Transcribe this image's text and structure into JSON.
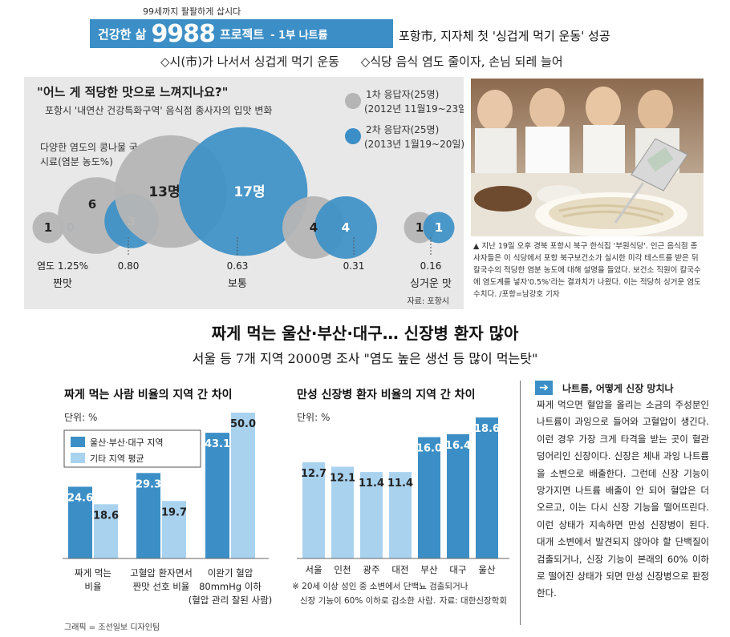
{
  "header": {
    "slogan": "99세까지 팔팔하게 삽시다",
    "banner_prefix": "건강한 삶",
    "banner_number": "9988",
    "banner_suffix": "프로젝트",
    "banner_part": "- 1부 나트륨",
    "headline": "포항市, 지자체 첫 '싱겁게 먹기 운동' 성공",
    "subheads": [
      "◇시(市)가 나서서 싱겁게 먹기 운동",
      "◇식당 음식 염도 줄이자, 손님 되레 늘어"
    ]
  },
  "photo_caption": "▲ 지난 19일 오후 경북 포항시 북구 한식집 '부원식당'. 인근 음식점 종사자들은 이 식당에서 포항 북구보건소가 실시한 미각 테스트를 받은 뒤 칼국수의 적당한 염분 농도에 대해 설명을 들었다. 보건소 직원이 칼국수에 염도계를 넣자'0.5%'라는 결과치가 나왔다. 이는 적당히 싱거운 염도 수치다. /포항=남강호 기자",
  "main": {
    "title": "짜게 먹는 울산·부산·대구… 신장병 환자 많아",
    "subtitle": "서울 등 7개 지역 2000명 조사 \"염도 높은 생선 등 많이 먹는탓\""
  },
  "sidebar": {
    "title": "나트륨, 어떻게 신장 망치나",
    "body": "짜게 먹으면 혈압을 올리는 소금의 주성분인 나트륨이 과잉으로 들어와 고혈압이 생긴다. 이런 경우 가장 크게 타격을 받는 곳이 혈관 덩어리인 신장이다. 신장은 체내 과잉 나트륨을 소변으로 배출한다. 그런데 신장 기능이 망가지면 나트륨 배출이 안 되어 혈압은 더 오르고, 이는 다시 신장 기능을 떨어뜨린다. 이런 상태가 지속하면 만성 신장병이 된다. 대개 소변에서 발견되지 않아야 할 단백질이 검출되거나, 신장 기능이 본래의 60% 이하로 떨어진 상태가 되면 만성 신장병으로 판정한다."
  },
  "credit": "그래픽 = 조선일보 디자인팀",
  "colors": {
    "accent": "#3c8fc6",
    "light": "#a9d2ef",
    "gray": "#b5b5b5",
    "panel": "#e8e8e8"
  },
  "chart_data": [
    {
      "type": "bubble",
      "title": "\"어느 게 적당한 맛으로 느껴지나요?\"",
      "subtitle": "포항시 '내연산 건강특화구역' 음식점 종사자의 입맛 변화",
      "ylabel": "다양한 염도의 콩나물 국 시료(염분 농도%)",
      "source": "자료: 포항시",
      "categories": [
        "0.80",
        "0.63",
        "0.31"
      ],
      "end_labels": {
        "left_value": "염도 1.25%",
        "left_word": "짠맛",
        "mid_word": "보통",
        "right_value": "0.16",
        "right_word": "싱거운 맛"
      },
      "series": [
        {
          "name": "1차 응답자(25명)",
          "period": "(2012년 11월19~23일)",
          "values": [
            1,
            6,
            13,
            4,
            1
          ],
          "labels": [
            "1",
            "6",
            "13명",
            "4",
            "1"
          ]
        },
        {
          "name": "2차 응답자(25명)",
          "period": "(2013년 1월19~20일)",
          "values": [
            0,
            3,
            17,
            4,
            1
          ],
          "labels": [
            "0",
            "3",
            "17명",
            "4",
            "1"
          ]
        }
      ]
    },
    {
      "type": "bar",
      "title": "짜게 먹는 사람 비율의 지역 간 차이",
      "unit": "단위: %",
      "categories": [
        "짜게 먹는\n비율",
        "고혈압 환자면서\n짠맛 선호 비율",
        "이완기 혈압\n80mmHg 이하\n(혈압 관리 잘된 사람)"
      ],
      "series": [
        {
          "name": "울산·부산·대구 지역",
          "values": [
            24.6,
            29.3,
            43.1
          ]
        },
        {
          "name": "기타 지역 평균",
          "values": [
            18.6,
            19.7,
            50.0
          ]
        }
      ],
      "ylim": [
        0,
        50
      ],
      "legend": "top-left"
    },
    {
      "type": "bar",
      "title": "만성 신장병 환자 비율의 지역 간 차이",
      "unit": "단위: %",
      "categories": [
        "서울",
        "인천",
        "광주",
        "대전",
        "부산",
        "대구",
        "울산"
      ],
      "values": [
        12.7,
        12.1,
        11.4,
        11.4,
        16.0,
        16.4,
        18.6
      ],
      "highlight": [
        false,
        false,
        false,
        false,
        true,
        true,
        true
      ],
      "ylim": [
        0,
        18.6
      ],
      "note": "※ 20세 이상 성인 중 소변에서 단백뇨 검출되거나 신장 기능이 60% 이하로 감소한 사람.",
      "source": "자료: 대한신장학회"
    }
  ]
}
